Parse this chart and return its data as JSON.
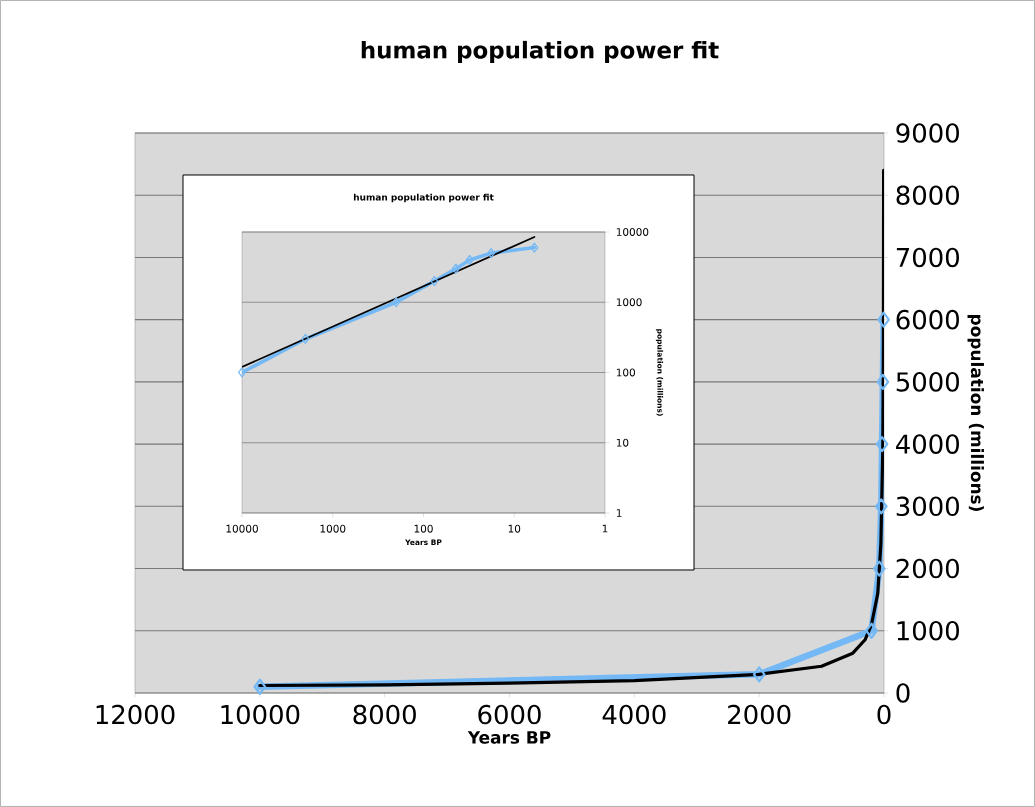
{
  "chart_data": [
    {
      "type": "line",
      "title": "human population power fit",
      "xlabel": "Years BP",
      "ylabel": "population (millions)",
      "xlim": [
        12000,
        0
      ],
      "xticks": [
        12000,
        10000,
        8000,
        6000,
        4000,
        2000,
        0
      ],
      "ylim": [
        0,
        9000
      ],
      "yticks": [
        0,
        1000,
        2000,
        3000,
        4000,
        5000,
        6000,
        7000,
        8000,
        9000
      ],
      "grid": "y",
      "series": [
        {
          "color": "#74b9f5",
          "marker": "diamond",
          "x": [
            10000,
            2000,
            200,
            76,
            44,
            31,
            18,
            6
          ],
          "values": [
            100,
            300,
            1000,
            2000,
            3000,
            4000,
            5000,
            6000
          ]
        },
        {
          "color": "#000000",
          "marker": "none",
          "x": [
            10000,
            8000,
            6000,
            4000,
            2000,
            1000,
            500,
            300,
            200,
            100,
            50,
            20,
            10,
            6
          ],
          "values": [
            120,
            130,
            160,
            200,
            300,
            430,
            640,
            860,
            1100,
            1600,
            2400,
            3900,
            5600,
            8400
          ]
        }
      ]
    },
    {
      "type": "line",
      "title": "human population power fit",
      "xlabel": "Years BP",
      "ylabel": "population (millions)",
      "log": "xy",
      "xlim": [
        10000,
        1
      ],
      "xticks": [
        10000,
        1000,
        100,
        10,
        1
      ],
      "ylim": [
        1,
        10000
      ],
      "yticks": [
        1,
        10,
        100,
        1000,
        10000
      ],
      "grid": "y",
      "series": [
        {
          "color": "#74b9f5",
          "marker": "diamond",
          "x": [
            10000,
            2000,
            200,
            76,
            44,
            31,
            18,
            6
          ],
          "values": [
            100,
            300,
            1000,
            2000,
            3000,
            4000,
            5000,
            6000
          ]
        },
        {
          "color": "#000000",
          "marker": "none",
          "x": [
            10000,
            6
          ],
          "values": [
            120,
            8500
          ]
        }
      ]
    }
  ]
}
